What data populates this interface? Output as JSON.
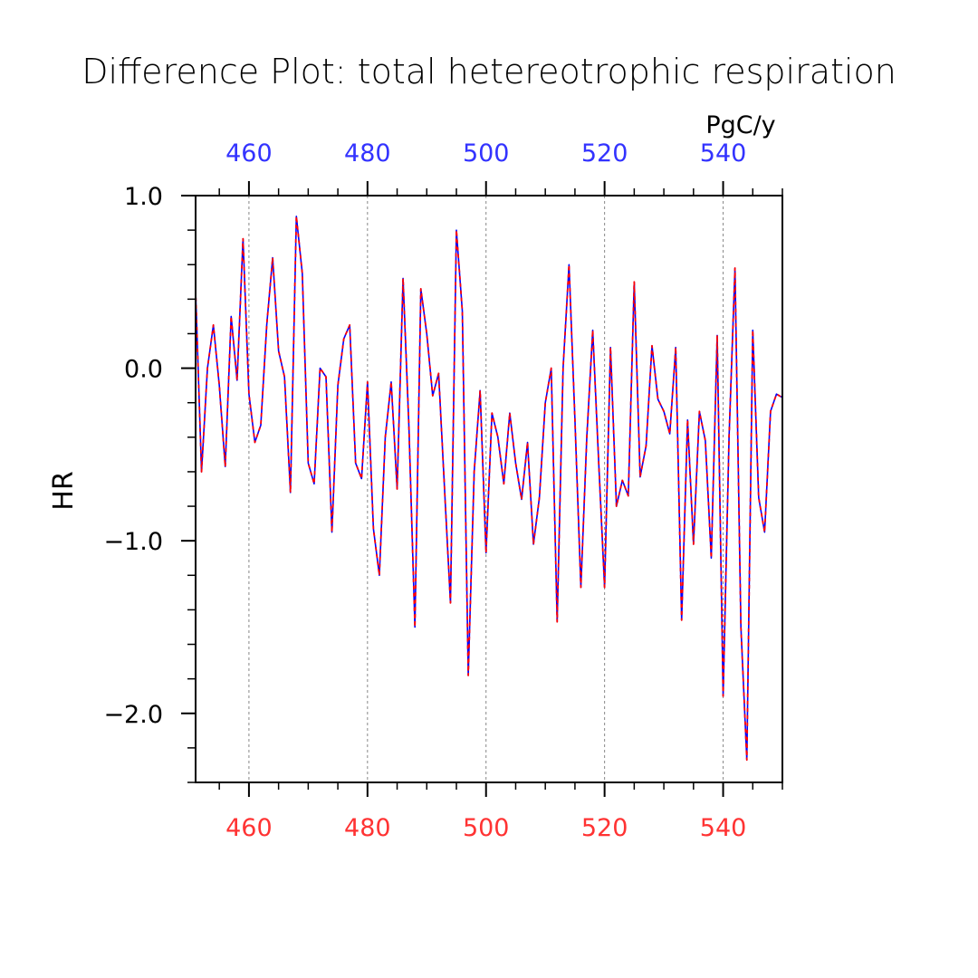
{
  "chart_data": {
    "type": "line",
    "title": "Difference Plot: total hetereotrophic respiration",
    "ylabel": "HR",
    "units": "PgC/y",
    "xlim": [
      451,
      550
    ],
    "ylim": [
      -2.4,
      1.0
    ],
    "x_ticks": [
      460,
      480,
      500,
      520,
      540
    ],
    "x_tick_labels": [
      "460",
      "480",
      "500",
      "520",
      "540"
    ],
    "y_ticks": [
      1.0,
      0.0,
      -1.0,
      -2.0
    ],
    "y_tick_labels": [
      "1.0",
      "0.0",
      "−1.0",
      "−2.0"
    ],
    "grid": "vertical-dashed",
    "colors": {
      "top_axis": "#3333ff",
      "bottom_axis": "#ff3333",
      "series_a": "#ff0000",
      "series_b": "#0000ff"
    },
    "x": [
      451,
      452,
      453,
      454,
      455,
      456,
      457,
      458,
      459,
      460,
      461,
      462,
      463,
      464,
      465,
      466,
      467,
      468,
      469,
      470,
      471,
      472,
      473,
      474,
      475,
      476,
      477,
      478,
      479,
      480,
      481,
      482,
      483,
      484,
      485,
      486,
      487,
      488,
      489,
      490,
      491,
      492,
      493,
      494,
      495,
      496,
      497,
      498,
      499,
      500,
      501,
      502,
      503,
      504,
      505,
      506,
      507,
      508,
      509,
      510,
      511,
      512,
      513,
      514,
      515,
      516,
      517,
      518,
      519,
      520,
      521,
      522,
      523,
      524,
      525,
      526,
      527,
      528,
      529,
      530,
      531,
      532,
      533,
      534,
      535,
      536,
      537,
      538,
      539,
      540,
      541,
      542,
      543,
      544,
      545,
      546,
      547,
      548,
      549,
      550
    ],
    "series": [
      {
        "values": [
          0.45,
          -0.6,
          0.0,
          0.25,
          -0.1,
          -0.57,
          0.3,
          -0.07,
          0.75,
          -0.15,
          -0.43,
          -0.33,
          0.25,
          0.64,
          0.1,
          -0.05,
          -0.72,
          0.88,
          0.55,
          -0.55,
          -0.67,
          0.0,
          -0.05,
          -0.95,
          -0.1,
          0.17,
          0.25,
          -0.55,
          -0.64,
          -0.08,
          -0.93,
          -1.2,
          -0.4,
          -0.08,
          -0.7,
          0.52,
          -0.35,
          -1.5,
          0.46,
          0.2,
          -0.16,
          -0.03,
          -0.7,
          -1.36,
          0.8,
          0.33,
          -1.78,
          -0.6,
          -0.13,
          -1.07,
          -0.26,
          -0.4,
          -0.67,
          -0.26,
          -0.55,
          -0.76,
          -0.43,
          -1.02,
          -0.75,
          -0.2,
          0.0,
          -1.47,
          0.0,
          0.6,
          -0.3,
          -1.27,
          -0.4,
          0.22,
          -0.54,
          -1.27,
          0.12,
          -0.8,
          -0.65,
          -0.74,
          0.5,
          -0.63,
          -0.45,
          0.13,
          -0.18,
          -0.25,
          -0.38,
          0.12,
          -1.46,
          -0.3,
          -1.02,
          -0.25,
          -0.42,
          -1.1,
          0.19,
          -1.9,
          -0.4,
          0.58,
          -1.5,
          -2.27,
          0.22,
          -0.75,
          -0.95,
          -0.25,
          -0.15,
          -0.17
        ]
      },
      {
        "values": [
          0.45,
          -0.6,
          0.0,
          0.25,
          -0.1,
          -0.57,
          0.3,
          -0.07,
          0.75,
          -0.15,
          -0.43,
          -0.33,
          0.25,
          0.64,
          0.1,
          -0.05,
          -0.72,
          0.88,
          0.55,
          -0.55,
          -0.67,
          0.0,
          -0.05,
          -0.95,
          -0.1,
          0.17,
          0.25,
          -0.55,
          -0.64,
          -0.08,
          -0.93,
          -1.2,
          -0.4,
          -0.08,
          -0.7,
          0.52,
          -0.35,
          -1.5,
          0.46,
          0.2,
          -0.16,
          -0.03,
          -0.7,
          -1.36,
          0.8,
          0.33,
          -1.78,
          -0.6,
          -0.13,
          -1.07,
          -0.26,
          -0.4,
          -0.67,
          -0.26,
          -0.55,
          -0.76,
          -0.43,
          -1.02,
          -0.75,
          -0.2,
          0.0,
          -1.47,
          0.0,
          0.6,
          -0.3,
          -1.27,
          -0.4,
          0.22,
          -0.54,
          -1.27,
          0.12,
          -0.8,
          -0.65,
          -0.74,
          0.5,
          -0.63,
          -0.45,
          0.13,
          -0.18,
          -0.25,
          -0.38,
          0.12,
          -1.46,
          -0.3,
          -1.02,
          -0.25,
          -0.42,
          -1.1,
          0.19,
          -1.9,
          -0.4,
          0.58,
          -1.5,
          -2.27,
          0.22,
          -0.75,
          -0.95,
          -0.25,
          -0.15,
          -0.17
        ]
      }
    ]
  }
}
